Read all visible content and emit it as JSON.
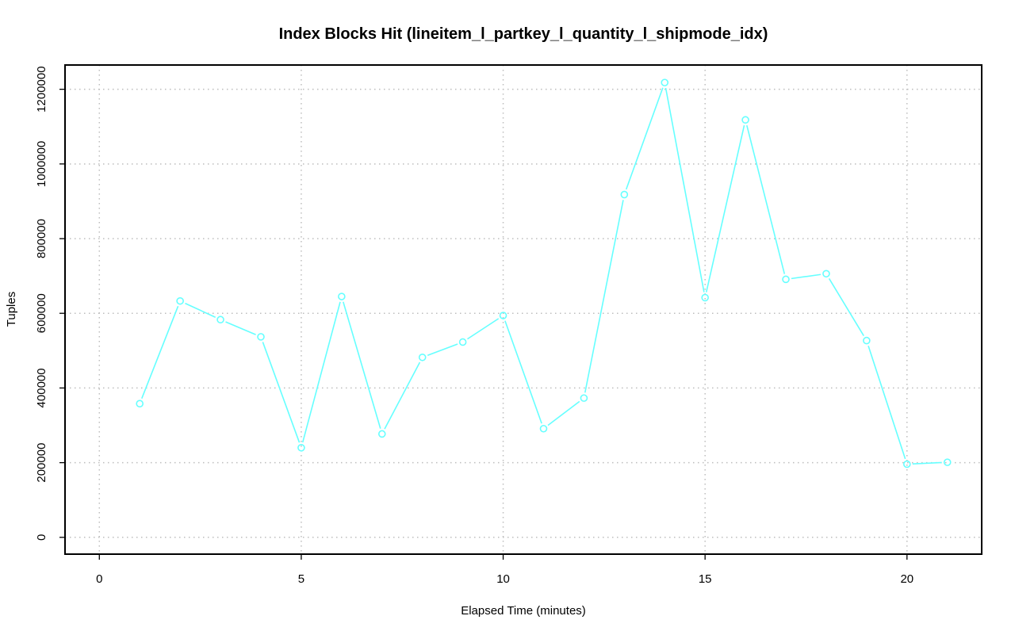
{
  "chart_data": {
    "type": "line",
    "title": "Index Blocks Hit (lineitem_l_partkey_l_quantity_l_shipmode_idx)",
    "xlabel": "Elapsed Time (minutes)",
    "ylabel": "Tuples",
    "xlim": [
      -0.85,
      21.85
    ],
    "ylim": [
      -45000,
      1265000
    ],
    "x_ticks": [
      0,
      5,
      10,
      15,
      20
    ],
    "x_tick_labels": [
      "0",
      "5",
      "10",
      "15",
      "20"
    ],
    "y_ticks": [
      0,
      200000,
      400000,
      600000,
      800000,
      1000000,
      1200000
    ],
    "y_tick_labels": [
      "0",
      "200000",
      "400000",
      "600000",
      "800000",
      "1000000",
      "1200000"
    ],
    "grid": true,
    "series": [
      {
        "color": "#66ffff",
        "marker": "open-circle",
        "x": [
          1,
          2,
          3,
          4,
          5,
          6,
          7,
          8,
          9,
          10,
          11,
          12,
          13,
          14,
          15,
          16,
          17,
          18,
          19,
          20,
          21
        ],
        "values": [
          358000,
          633000,
          583000,
          537000,
          240000,
          645000,
          277000,
          482000,
          523000,
          594000,
          291000,
          373000,
          918000,
          1218000,
          642000,
          1118000,
          691000,
          706000,
          527000,
          196000,
          201000
        ]
      }
    ]
  }
}
